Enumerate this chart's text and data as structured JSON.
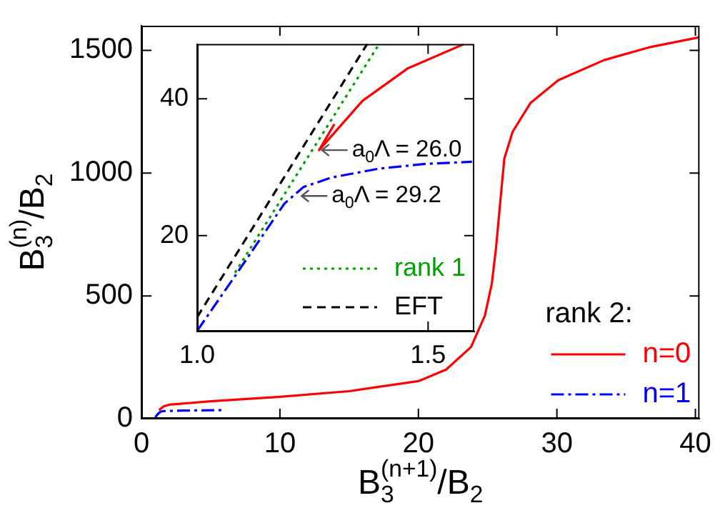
{
  "chart_data": [
    {
      "type": "line",
      "xlabel": "B$_{3}$$^{(n+1)}$/B$_{2}$",
      "ylabel": "B$_{3}$$^{(n)}$/B$_{2}$",
      "xlim": [
        0,
        40.3
      ],
      "ylim": [
        0,
        1600
      ],
      "xticks": [
        0,
        10,
        20,
        30,
        40
      ],
      "yticks": [
        0,
        500,
        1000,
        1500
      ],
      "grid": false,
      "marker": "none",
      "legend": "bottom right",
      "legend_title": "rank 2:",
      "series": [
        {
          "name": "n=0",
          "color": "#ff0000",
          "line_style": "solid",
          "x": [
            1.27,
            1.6,
            2,
            5,
            10,
            15,
            20,
            22,
            23.8,
            24.8,
            25.3,
            25.6,
            25.9,
            26.2,
            26.8,
            28.1,
            30.1,
            33.4,
            36.8,
            40.3
          ],
          "values": [
            35,
            50,
            57,
            71,
            89,
            112,
            153,
            200,
            292,
            420,
            550,
            693,
            876,
            1058,
            1168,
            1286,
            1378,
            1460,
            1514,
            1553
          ]
        },
        {
          "name": "n=1",
          "color": "#0000ff",
          "line_style": "dashdot",
          "x": [
            1,
            1.2,
            1.4,
            1.6,
            3,
            6
          ],
          "values": [
            6,
            20,
            29,
            31,
            33,
            35
          ]
        }
      ]
    },
    {
      "type": "line",
      "xlim": [
        1,
        1.6
      ],
      "ylim": [
        6,
        48
      ],
      "xticks": [
        {
          "value": 1,
          "label": "1.0"
        },
        1.5
      ],
      "yticks": [
        20,
        40
      ],
      "grid": false,
      "marker": "none",
      "legend": "bottom right",
      "annotations": [
        {
          "text": "a$_{0}$Λ = 26.0",
          "x": 1.264,
          "y": 32.5
        },
        {
          "text": "a$_{0}$Λ = 29.2",
          "x": 1.22,
          "y": 25.8
        }
      ],
      "series": [
        {
          "name": "rank 1",
          "color": "#00a000",
          "line_style": "dotted",
          "x": [
            1.082,
            1.394
          ],
          "values": [
            14.6,
            48
          ]
        },
        {
          "name": "EFT",
          "color": "#000000",
          "line_style": "dashed",
          "x": [
            1,
            1.368
          ],
          "values": [
            8.1,
            48
          ]
        },
        {
          "color": "#ff0000",
          "line_style": "solid",
          "x": [
            1.297,
            1.264,
            1.358,
            1.455,
            1.578
          ],
          "values": [
            36.3,
            32.5,
            39.7,
            44.4,
            48
          ]
        },
        {
          "color": "#0000ff",
          "line_style": "dashdot",
          "x": [
            1,
            1.087,
            1.189,
            1.23,
            1.291,
            1.394,
            1.496,
            1.595
          ],
          "values": [
            6.1,
            14.6,
            24.7,
            27.1,
            28.5,
            29.8,
            30.5,
            30.8
          ]
        }
      ]
    }
  ]
}
